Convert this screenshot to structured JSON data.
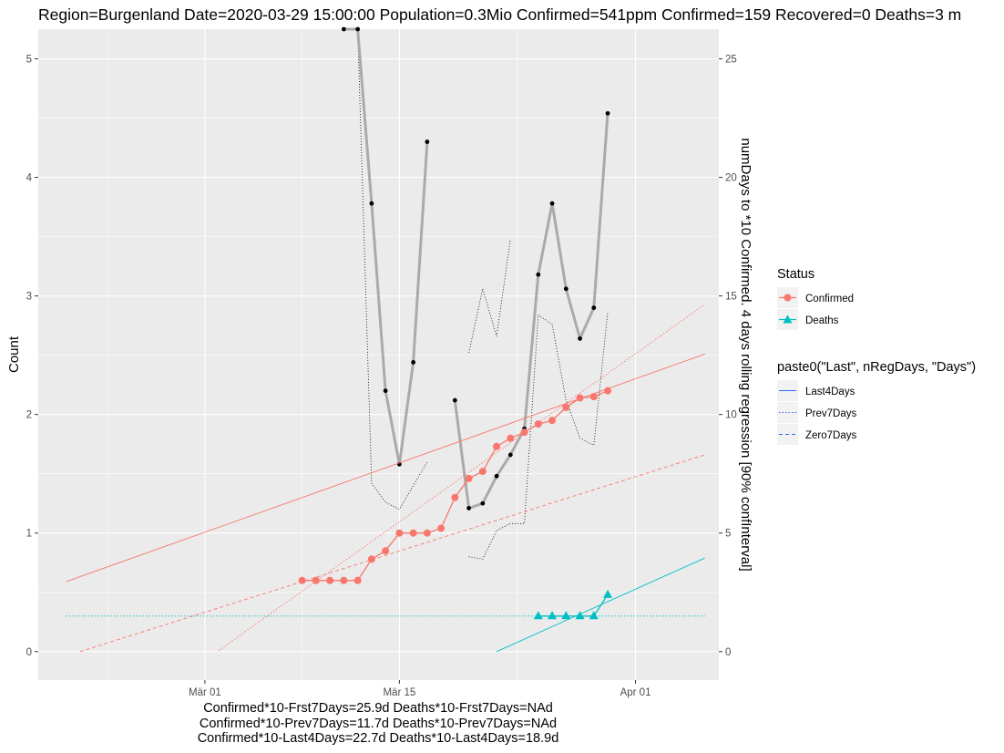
{
  "chart_data": {
    "type": "line",
    "title": "Region=Burgenland Date=2020-03-29 15:00:00  Population=0.3Mio Confirmed=541ppm  Confirmed=159  Recovered=0 Deaths=3  m",
    "ylabel": "Count",
    "y2label": "numDays to *10 Confirmed. 4 days rolling regression [90% confInterval]",
    "ylim": [
      -0.24,
      5.25
    ],
    "y2lim": [
      -1.2,
      26.25
    ],
    "yticks": [
      0,
      1,
      2,
      3,
      4,
      5
    ],
    "y2ticks": [
      0,
      5,
      10,
      15,
      20,
      25
    ],
    "x_domain": [
      "2020-02-18",
      "2020-04-07"
    ],
    "xticks": [
      {
        "date": "2020-03-01",
        "label": "Mär 01"
      },
      {
        "date": "2020-03-15",
        "label": "Mär 15"
      },
      {
        "date": "2020-04-01",
        "label": "Apr 01"
      }
    ],
    "series": [
      {
        "name": "Confirmed",
        "color": "#F8766D",
        "marker": "circle",
        "points": [
          [
            "2020-03-08",
            0.6
          ],
          [
            "2020-03-09",
            0.6
          ],
          [
            "2020-03-10",
            0.6
          ],
          [
            "2020-03-11",
            0.6
          ],
          [
            "2020-03-12",
            0.6
          ],
          [
            "2020-03-13",
            0.78
          ],
          [
            "2020-03-14",
            0.85
          ],
          [
            "2020-03-15",
            1.0
          ],
          [
            "2020-03-16",
            1.0
          ],
          [
            "2020-03-17",
            1.0
          ],
          [
            "2020-03-18",
            1.04
          ],
          [
            "2020-03-19",
            1.3
          ],
          [
            "2020-03-20",
            1.46
          ],
          [
            "2020-03-21",
            1.52
          ],
          [
            "2020-03-22",
            1.73
          ],
          [
            "2020-03-23",
            1.8
          ],
          [
            "2020-03-24",
            1.85
          ],
          [
            "2020-03-25",
            1.92
          ],
          [
            "2020-03-26",
            1.95
          ],
          [
            "2020-03-27",
            2.06
          ],
          [
            "2020-03-28",
            2.14
          ],
          [
            "2020-03-29",
            2.15
          ],
          [
            "2020-03-30",
            2.2
          ]
        ]
      },
      {
        "name": "Deaths",
        "color": "#00BFC4",
        "marker": "triangle",
        "points": [
          [
            "2020-03-25",
            0.3
          ],
          [
            "2020-03-26",
            0.3
          ],
          [
            "2020-03-27",
            0.3
          ],
          [
            "2020-03-28",
            0.3
          ],
          [
            "2020-03-29",
            0.3
          ],
          [
            "2020-03-30",
            0.48
          ]
        ]
      }
    ],
    "regressions": [
      {
        "status": "Confirmed",
        "type": "Last4Days",
        "color": "#F8766D",
        "points": [
          [
            "2020-02-20",
            0.59
          ],
          [
            "2020-04-06",
            2.51
          ]
        ]
      },
      {
        "status": "Confirmed",
        "type": "Prev7Days",
        "color": "#F8766D",
        "points": [
          [
            "2020-03-02",
            0.01
          ],
          [
            "2020-04-06",
            2.93
          ]
        ]
      },
      {
        "status": "Confirmed",
        "type": "Zero7Days",
        "color": "#F8766D",
        "points": [
          [
            "2020-02-21",
            0.0
          ],
          [
            "2020-04-06",
            1.66
          ]
        ]
      },
      {
        "status": "Deaths",
        "type": "Last4Days",
        "color": "#00BFC4",
        "points": [
          [
            "2020-03-22",
            0.0
          ],
          [
            "2020-04-06",
            0.79
          ]
        ]
      },
      {
        "status": "Deaths",
        "type": "Prev7Days",
        "color": "#00BFC4",
        "points": [
          [
            "2020-02-20",
            0.3
          ],
          [
            "2020-04-06",
            0.3
          ]
        ]
      }
    ],
    "secondary_series": {
      "name": "numDays to *10 Confirmed",
      "color": "#AAAAAA",
      "marker_color": "#000000",
      "segments": [
        [
          [
            "2020-03-11",
            26.3
          ],
          [
            "2020-03-12",
            26.3
          ],
          [
            "2020-03-13",
            18.9
          ],
          [
            "2020-03-14",
            11.0
          ],
          [
            "2020-03-15",
            7.9
          ],
          [
            "2020-03-16",
            12.2
          ],
          [
            "2020-03-17",
            21.5
          ]
        ],
        [
          [
            "2020-03-19",
            10.6
          ],
          [
            "2020-03-20",
            6.05
          ],
          [
            "2020-03-21",
            6.25
          ],
          [
            "2020-03-22",
            7.4
          ],
          [
            "2020-03-23",
            8.3
          ],
          [
            "2020-03-24",
            9.4
          ],
          [
            "2020-03-25",
            15.9
          ],
          [
            "2020-03-26",
            18.9
          ],
          [
            "2020-03-27",
            15.3
          ],
          [
            "2020-03-28",
            13.2
          ],
          [
            "2020-03-29",
            14.5
          ],
          [
            "2020-03-30",
            22.7
          ]
        ]
      ],
      "ci_segments": [
        [
          [
            "2020-03-12",
            26.3
          ],
          [
            "2020-03-13",
            7.1
          ],
          [
            "2020-03-14",
            6.3
          ],
          [
            "2020-03-15",
            6.0
          ],
          [
            "2020-03-16",
            7.0
          ],
          [
            "2020-03-17",
            8.0
          ]
        ],
        [
          [
            "2020-03-20",
            4.0
          ],
          [
            "2020-03-21",
            3.9
          ],
          [
            "2020-03-22",
            5.1
          ],
          [
            "2020-03-23",
            5.4
          ],
          [
            "2020-03-24",
            5.4
          ],
          [
            "2020-03-25",
            14.2
          ],
          [
            "2020-03-26",
            13.8
          ],
          [
            "2020-03-27",
            10.6
          ],
          [
            "2020-03-28",
            9.0
          ],
          [
            "2020-03-29",
            8.7
          ],
          [
            "2020-03-30",
            14.3
          ]
        ],
        [
          [
            "2020-03-20",
            12.6
          ],
          [
            "2020-03-21",
            15.3
          ],
          [
            "2020-03-22",
            13.3
          ],
          [
            "2020-03-23",
            17.4
          ]
        ]
      ]
    },
    "legend_status": {
      "title": "Status",
      "items": [
        {
          "label": "Confirmed",
          "color": "#F8766D",
          "marker": "circle"
        },
        {
          "label": "Deaths",
          "color": "#00BFC4",
          "marker": "triangle"
        }
      ]
    },
    "legend_regression": {
      "title": "paste0(\"Last\", nRegDays, \"Days\")",
      "items": [
        {
          "label": "Last4Days",
          "color": "#3366FF",
          "dash": "solid"
        },
        {
          "label": "Prev7Days",
          "color": "#3366FF",
          "dash": "dotted"
        },
        {
          "label": "Zero7Days",
          "color": "#3366FF",
          "dash": "dashed"
        }
      ]
    },
    "caption": [
      "Confirmed*10-Frst7Days=25.9d  Deaths*10-Frst7Days=NAd",
      "Confirmed*10-Prev7Days=11.7d  Deaths*10-Prev7Days=NAd",
      "Confirmed*10-Last4Days=22.7d  Deaths*10-Last4Days=18.9d"
    ],
    "grid": true,
    "legend_position": "right"
  }
}
